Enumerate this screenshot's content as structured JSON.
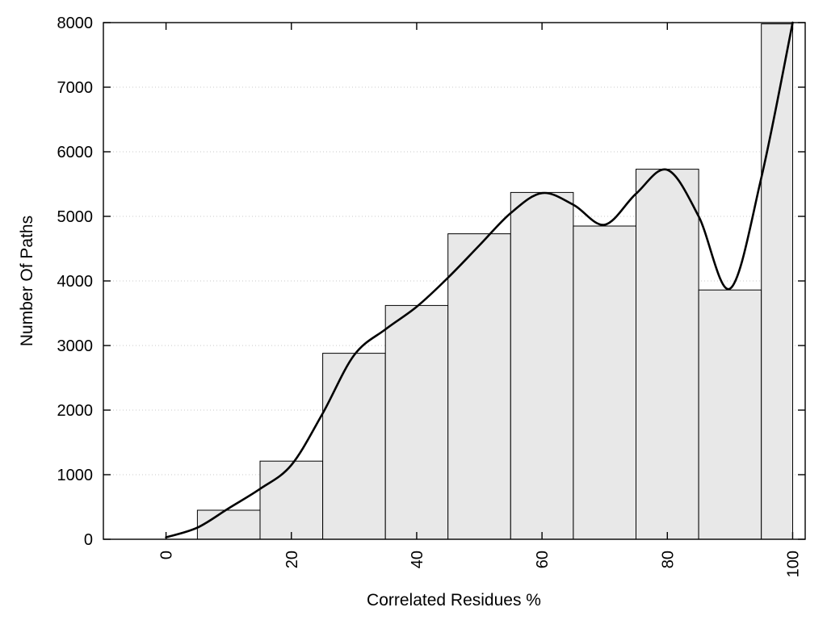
{
  "figure": {
    "background": "#ffffff"
  },
  "chart_data": {
    "type": "bar",
    "title": "",
    "xlabel": "Correlated Residues %",
    "ylabel": "Number Of Paths",
    "xlim": [
      -10,
      102
    ],
    "ylim": [
      0,
      8000
    ],
    "x_ticks": [
      0,
      20,
      40,
      60,
      80,
      100
    ],
    "y_ticks": [
      0,
      1000,
      2000,
      3000,
      4000,
      5000,
      6000,
      7000,
      8000
    ],
    "grid": "horizontal dotted lines at each y tick",
    "legend": "none",
    "x_tick_labels_rotated": true,
    "colors": {
      "bar_fill": "#e8e8e8",
      "bar_edge": "#000000",
      "curve": "#000000",
      "grid": "#c9c9c9",
      "axis": "#000000"
    },
    "bins": [
      {
        "x0": 5,
        "x1": 15,
        "value": 450
      },
      {
        "x0": 15,
        "x1": 25,
        "value": 1210
      },
      {
        "x0": 25,
        "x1": 35,
        "value": 2880
      },
      {
        "x0": 35,
        "x1": 45,
        "value": 3620
      },
      {
        "x0": 45,
        "x1": 55,
        "value": 4730
      },
      {
        "x0": 55,
        "x1": 65,
        "value": 5370
      },
      {
        "x0": 65,
        "x1": 75,
        "value": 4850
      },
      {
        "x0": 75,
        "x1": 85,
        "value": 5730
      },
      {
        "x0": 85,
        "x1": 95,
        "value": 3860
      },
      {
        "x0": 95,
        "x1": 100,
        "value": 7980
      }
    ],
    "curve": {
      "name": "smoothed-trend-line",
      "x": [
        0,
        5,
        10,
        15,
        20,
        25,
        30,
        35,
        40,
        45,
        50,
        55,
        60,
        65,
        70,
        75,
        80,
        85,
        90,
        95,
        100
      ],
      "y": [
        30,
        180,
        480,
        780,
        1150,
        1950,
        2850,
        3250,
        3600,
        4050,
        4550,
        5050,
        5360,
        5180,
        4870,
        5350,
        5720,
        5000,
        3880,
        5600,
        8000
      ]
    }
  }
}
